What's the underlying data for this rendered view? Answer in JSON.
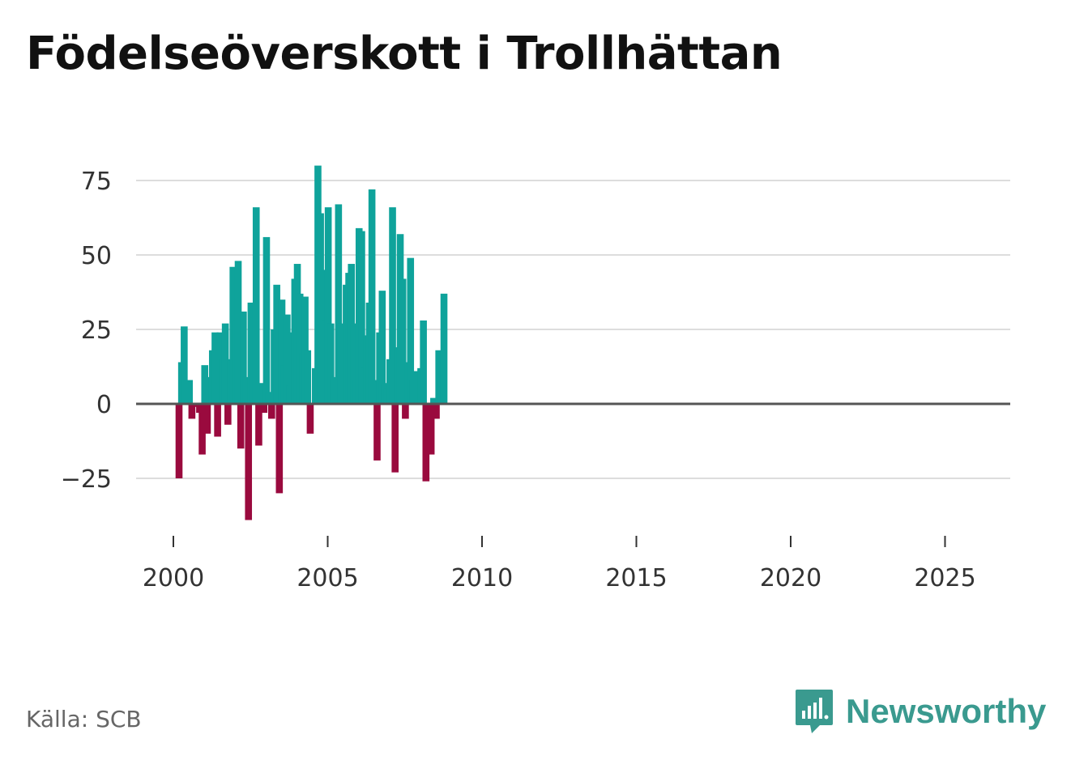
{
  "header": {
    "title": "Födelseöverskott i Trollhättan"
  },
  "footer": {
    "source": "Källa: SCB",
    "brand": "Newsworthy"
  },
  "colors": {
    "positive": "#0fa39b",
    "negative": "#9a0a3e",
    "grid": "#dddddd",
    "zero": "#555555"
  },
  "chart_data": {
    "type": "bar",
    "title": "Födelseöverskott i Trollhättan",
    "xlabel": "",
    "ylabel": "",
    "frequency": "monthly (approx.)",
    "start_year": 2000,
    "ylim": [
      -40,
      80
    ],
    "yticks": [
      {
        "value": 75,
        "label": "75"
      },
      {
        "value": 50,
        "label": "50"
      },
      {
        "value": 25,
        "label": "25"
      },
      {
        "value": 0,
        "label": "0"
      },
      {
        "value": -25,
        "label": "−25"
      }
    ],
    "xticks": [
      {
        "value": 2000,
        "label": "2000"
      },
      {
        "value": 2005,
        "label": "2005"
      },
      {
        "value": 2010,
        "label": "2010"
      },
      {
        "value": 2015,
        "label": "2015"
      },
      {
        "value": 2020,
        "label": "2020"
      },
      {
        "value": 2025,
        "label": "2025"
      }
    ],
    "values": [
      -25,
      14,
      26,
      1,
      8,
      -5,
      -1,
      -1,
      -3,
      -17,
      13,
      -10,
      9,
      18,
      24,
      -11,
      24,
      15,
      27,
      -7,
      15,
      46,
      28,
      48,
      -15,
      31,
      9,
      -39,
      34,
      29,
      66,
      -14,
      7,
      -3,
      56,
      4,
      -5,
      25,
      40,
      -30,
      35,
      13,
      30,
      6,
      24,
      42,
      47,
      37,
      17,
      36,
      18,
      -10,
      0,
      12,
      80,
      64,
      45,
      28,
      66,
      27,
      9,
      1,
      67,
      27,
      15,
      40,
      44,
      47,
      27,
      8,
      59,
      58,
      12,
      23,
      34,
      72,
      8,
      -19,
      24,
      38,
      7,
      5,
      15,
      66,
      -23,
      19,
      57,
      42,
      -5,
      14,
      49,
      8,
      11,
      1,
      12,
      28,
      -26,
      -9,
      -17,
      2,
      -5,
      18,
      8,
      37
    ]
  }
}
